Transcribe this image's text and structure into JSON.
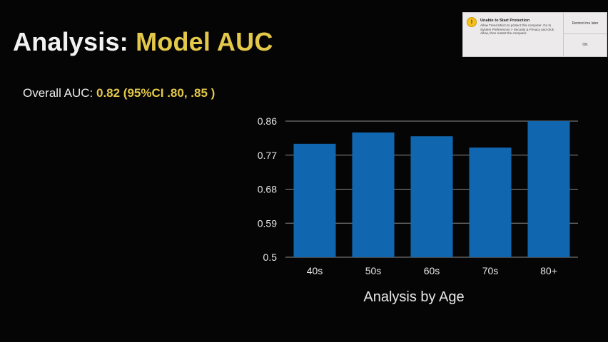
{
  "slide": {
    "title_prefix": "Analysis: ",
    "title_accent": "Model AUC",
    "overall_label": "Overall AUC: ",
    "overall_value": "0.82 (95%CI .80, .85 )"
  },
  "notification": {
    "title": "Unable to Start Protection",
    "message": "Allow Trend Micro to protect this computer. Go to System Preferences > Security & Privacy and click Allow, then restart the computer.",
    "remind_label": "Remind me later",
    "ok_label": "OK",
    "icon": "warning-icon"
  },
  "colors": {
    "bar": "#1166b0",
    "accent": "#e3c84a",
    "background": "#050505",
    "gridline": "#8a8a8a"
  },
  "chart_data": {
    "type": "bar",
    "categories": [
      "40s",
      "50s",
      "60s",
      "70s",
      "80+"
    ],
    "values": [
      0.8,
      0.83,
      0.82,
      0.79,
      0.86
    ],
    "xlabel": "Analysis by Age",
    "ylabel": "",
    "ylim": [
      0.5,
      0.86
    ],
    "yticks": [
      0.5,
      0.59,
      0.68,
      0.77,
      0.86
    ],
    "ytick_labels": [
      "0.5",
      "0.59",
      "0.68",
      "0.77",
      "0.86"
    ],
    "grid": true
  }
}
